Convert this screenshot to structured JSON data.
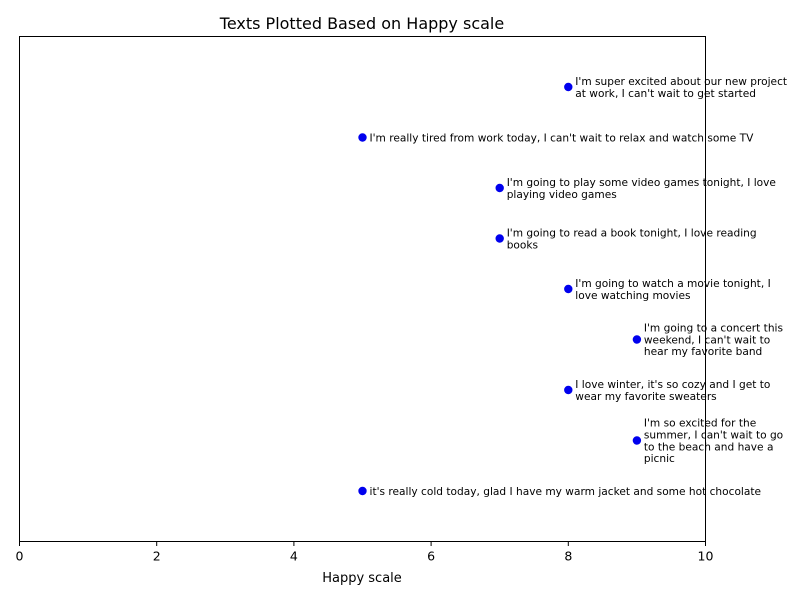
{
  "chart_data": {
    "type": "scatter",
    "title": "Texts Plotted Based on Happy scale",
    "xlabel": "Happy scale",
    "ylabel": "",
    "xlim": [
      0,
      10
    ],
    "xticks": [
      "0",
      "2",
      "4",
      "6",
      "8",
      "10"
    ],
    "y_ticks_shown": false,
    "grid": false,
    "legend": "none",
    "marker_color": "#0000ee",
    "points": [
      {
        "x": 8,
        "y": 9,
        "lines": [
          "I'm super excited about our new project",
          "at work, I can't wait to get started"
        ]
      },
      {
        "x": 5,
        "y": 8,
        "lines": [
          "I'm really tired from work today, I can't wait to relax and watch some TV"
        ]
      },
      {
        "x": 7,
        "y": 7,
        "lines": [
          "I'm going to play some video games tonight, I love",
          "playing video games"
        ]
      },
      {
        "x": 7,
        "y": 6,
        "lines": [
          "I'm going to read a book tonight, I love reading",
          "books"
        ]
      },
      {
        "x": 8,
        "y": 5,
        "lines": [
          "I'm going to watch a movie tonight, I",
          "love watching movies"
        ]
      },
      {
        "x": 9,
        "y": 4,
        "lines": [
          "I'm going to a concert this",
          "weekend, I can't wait to",
          "hear my favorite band"
        ]
      },
      {
        "x": 8,
        "y": 3,
        "lines": [
          "I love winter, it's so cozy and I get to",
          "wear my favorite sweaters"
        ]
      },
      {
        "x": 9,
        "y": 2,
        "lines": [
          "I'm so excited for the",
          "summer, I can't wait to go",
          "to the beach and have a",
          "picnic"
        ]
      },
      {
        "x": 5,
        "y": 1,
        "lines": [
          "it's really cold today, glad I have my warm jacket and some hot chocolate"
        ]
      }
    ]
  }
}
